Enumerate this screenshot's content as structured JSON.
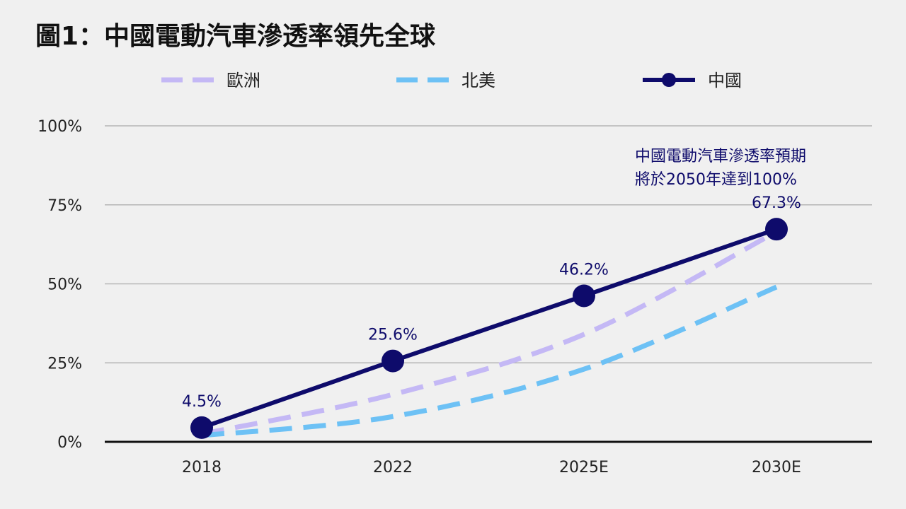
{
  "chart_data": {
    "type": "line",
    "title": "圖1：中國電動汽車滲透率領先全球",
    "categories": [
      "2018",
      "2022",
      "2025E",
      "2030E"
    ],
    "ylim": [
      0,
      100
    ],
    "yticks": [
      "0%",
      "25%",
      "50%",
      "75%",
      "100%"
    ],
    "ytick_values": [
      0,
      25,
      50,
      75,
      100
    ],
    "grid": true,
    "legend_position": "top",
    "series": [
      {
        "name": "歐洲",
        "values": [
          2.5,
          15,
          34,
          66.5
        ],
        "style": "dashed",
        "color": "#c4b8f5"
      },
      {
        "name": "北美",
        "values": [
          2,
          8,
          23,
          49
        ],
        "style": "dashed",
        "color": "#6dc1f5"
      },
      {
        "name": "中國",
        "values": [
          4.5,
          25.6,
          46.2,
          67.3
        ],
        "style": "solid-markers",
        "color": "#0e0b6b"
      }
    ],
    "data_labels": [
      "4.5%",
      "25.6%",
      "46.2%",
      "67.3%"
    ],
    "annotation": [
      "中國電動汽車滲透率預期",
      "將於2050年達到100%"
    ],
    "colors": {
      "grid": "#b5b5b5",
      "axis": "#111111",
      "label": "#0e0b6b"
    }
  }
}
